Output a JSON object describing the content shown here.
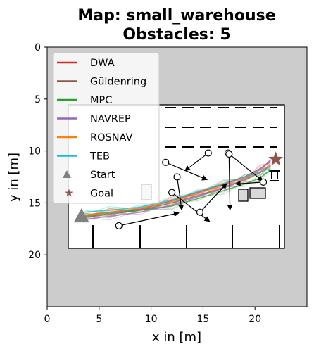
{
  "chart_data": {
    "type": "line",
    "title": "Map: small_warehouse",
    "subtitle": "Obstacles: 5",
    "xlabel": "x in [m]",
    "ylabel": "y in [m]",
    "xlim": [
      0,
      25
    ],
    "ylim": [
      25,
      0
    ],
    "x_ticks": [
      "0",
      "5",
      "10",
      "15",
      "20"
    ],
    "y_ticks": [
      "0",
      "5",
      "10",
      "15",
      "20"
    ],
    "legend_position": "top-left",
    "colors": {
      "background": "#cccccc",
      "map_free": "#ffffff",
      "start": "#808080",
      "goal": "#8c564b",
      "obstacle_fill": "#d9d9d9"
    },
    "series": [
      {
        "name": "DWA",
        "color": "#d62728",
        "x": [
          3.5,
          6,
          9,
          12,
          14.5,
          17,
          19,
          20.5,
          21.5
        ],
        "y": [
          16.2,
          15.9,
          15.6,
          14.8,
          14,
          13.2,
          12.5,
          11.7,
          11
        ]
      },
      {
        "name": "Güldenring",
        "color": "#8c564b",
        "x": [
          3.5,
          6,
          9,
          12,
          14.5,
          17,
          19,
          20.5,
          21.5
        ],
        "y": [
          16.4,
          16.1,
          15.7,
          15,
          14.3,
          13.5,
          12.8,
          12.1,
          11.4
        ]
      },
      {
        "name": "MPC",
        "color": "#2ca02c",
        "x": [
          3.5,
          6,
          9,
          12,
          14.5,
          17,
          19,
          20.5,
          21.5
        ],
        "y": [
          16.3,
          16,
          15.7,
          15.3,
          14.6,
          13.8,
          13.2,
          12.6,
          11.8
        ]
      },
      {
        "name": "NAVREP",
        "color": "#9467bd",
        "x": [
          3.5,
          6,
          9,
          12,
          14.5,
          17,
          19,
          20.5,
          21.5
        ],
        "y": [
          16.6,
          16.3,
          15.9,
          15.2,
          14.4,
          13.6,
          12.7,
          11.8,
          10.9
        ]
      },
      {
        "name": "ROSNAV",
        "color": "#ff7f0e",
        "x": [
          3.5,
          6,
          9,
          12,
          14.5,
          17,
          19,
          20.5,
          21.5
        ],
        "y": [
          16.2,
          15.9,
          15.5,
          14.9,
          14.1,
          13.3,
          12.6,
          12,
          11.3
        ]
      },
      {
        "name": "TEB",
        "color": "#17becf",
        "x": [
          3.5,
          6,
          9,
          12,
          14.5,
          17,
          19,
          20.5,
          21.5
        ],
        "y": [
          15.9,
          15.7,
          15.4,
          14.7,
          13.9,
          13.1,
          12.5,
          12,
          11.7
        ]
      }
    ],
    "start": {
      "label": "Start",
      "x": 3.3,
      "y": 16.4
    },
    "goal": {
      "label": "Goal",
      "x": 22,
      "y": 10.8
    },
    "obstacle_paths": [
      [
        [
          11.4,
          11.1
        ],
        [
          15.7,
          12.9
        ]
      ],
      [
        [
          15.5,
          10.2
        ],
        [
          13.0,
          12.1
        ]
      ],
      [
        [
          17.4,
          10.2
        ],
        [
          21.0,
          13.1
        ]
      ],
      [
        [
          17.5,
          10.3
        ],
        [
          17.6,
          16.0
        ]
      ],
      [
        [
          12.5,
          12.5
        ],
        [
          13.0,
          16.0
        ]
      ],
      [
        [
          12.0,
          14.0
        ],
        [
          15.9,
          17.0
        ]
      ],
      [
        [
          6.9,
          17.2
        ],
        [
          13.0,
          15.9
        ]
      ],
      [
        [
          20.8,
          13.0
        ],
        [
          17.8,
          13.2
        ]
      ],
      [
        [
          14.7,
          15.9
        ],
        [
          17.5,
          12.9
        ]
      ]
    ]
  }
}
